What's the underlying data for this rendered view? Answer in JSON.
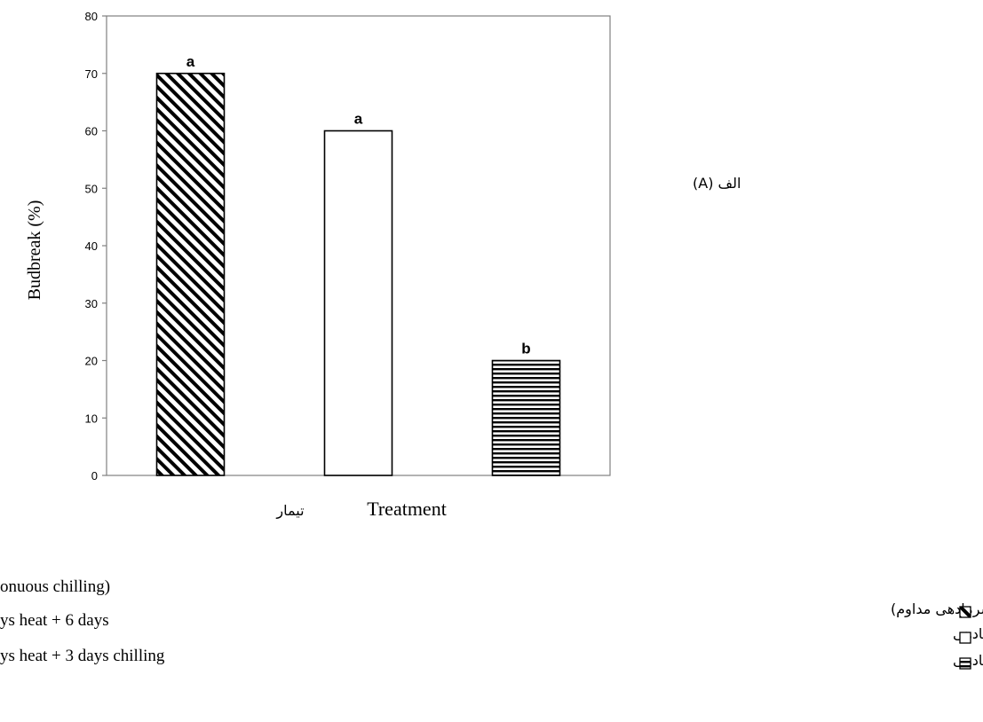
{
  "chart_data": {
    "type": "bar",
    "categories": [
      "",
      "",
      ""
    ],
    "values": [
      70,
      60,
      20
    ],
    "bar_labels": [
      "a",
      "a",
      "b"
    ],
    "patterns": [
      "diagonal-hatch",
      "blank",
      "horizontal-hatch"
    ],
    "ylabel": "Budbreak (%)",
    "xlabel": "Treatment",
    "xlabel_fa": "تیمار",
    "ylim": [
      0,
      80
    ],
    "yticks": [
      0,
      10,
      20,
      30,
      40,
      50,
      60,
      70,
      80
    ],
    "grid": false,
    "legend_position": "bottom",
    "bar_color": "#000000"
  },
  "panel_label": "(A) الف",
  "legend": {
    "english": [
      "onuous chilling)",
      "ys heat + 6 days",
      "ys heat + 3 days chilling"
    ],
    "persian": [
      "(  روز سرمادهی مداوم)",
      "روز سرمادهی+   روز گرمادهی+   روز سرمادهی",
      "روز سرمادهی+   روز گرمادهی+   روز سرمادهی"
    ]
  }
}
